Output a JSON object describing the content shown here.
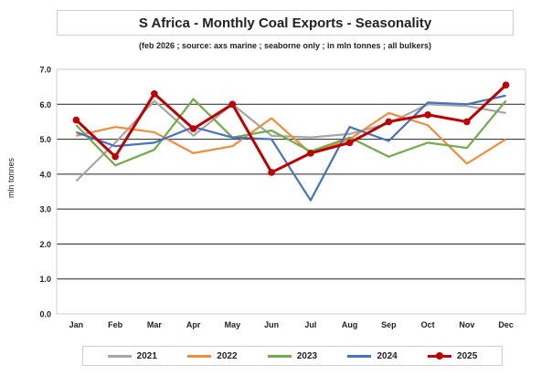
{
  "title": "S Africa - Monthly Coal Exports - Seasonality",
  "subtitle": "(feb 2026 ; source: axs marine ; seaborne only ; in mln tonnes ; all bulkers)",
  "chart_data": {
    "type": "line",
    "title": "S Africa - Monthly Coal Exports - Seasonality",
    "subtitle": "(feb 2026 ; source: axs marine ; seaborne only ; in mln tonnes ; all bulkers)",
    "xlabel": "",
    "ylabel": "mln tonnes",
    "ylim": [
      0,
      7
    ],
    "yticks": [
      "0.0",
      "1.0",
      "2.0",
      "3.0",
      "4.0",
      "5.0",
      "6.0",
      "7.0"
    ],
    "categories": [
      "Jan",
      "Feb",
      "Mar",
      "Apr",
      "May",
      "Jun",
      "Jul",
      "Aug",
      "Sep",
      "Oct",
      "Nov",
      "Dec"
    ],
    "grid": "horizontal",
    "legend_position": "bottom",
    "series": [
      {
        "name": "2021",
        "color": "#a6a6a6",
        "markers": false,
        "values": [
          3.8,
          4.9,
          6.1,
          5.1,
          6.0,
          5.1,
          5.05,
          5.15,
          5.45,
          6.0,
          5.95,
          5.75
        ]
      },
      {
        "name": "2022",
        "color": "#f28c38",
        "markers": false,
        "values": [
          5.1,
          5.35,
          5.2,
          4.6,
          4.8,
          5.6,
          4.6,
          5.0,
          5.75,
          5.4,
          4.3,
          5.0
        ]
      },
      {
        "name": "2023",
        "color": "#70ad47",
        "markers": false,
        "values": [
          5.4,
          4.25,
          4.7,
          6.15,
          5.05,
          5.25,
          4.65,
          5.05,
          4.5,
          4.9,
          4.75,
          6.1
        ]
      },
      {
        "name": "2024",
        "color": "#4472c4",
        "markers": false,
        "values": [
          5.2,
          4.8,
          4.9,
          5.35,
          5.05,
          5.0,
          3.25,
          5.35,
          4.95,
          6.05,
          6.0,
          6.25
        ]
      },
      {
        "name": "2025",
        "color": "#c00000",
        "markers": true,
        "values": [
          5.55,
          4.5,
          6.3,
          5.3,
          6.0,
          4.05,
          4.6,
          4.9,
          5.5,
          5.7,
          5.5,
          6.55
        ]
      }
    ]
  }
}
